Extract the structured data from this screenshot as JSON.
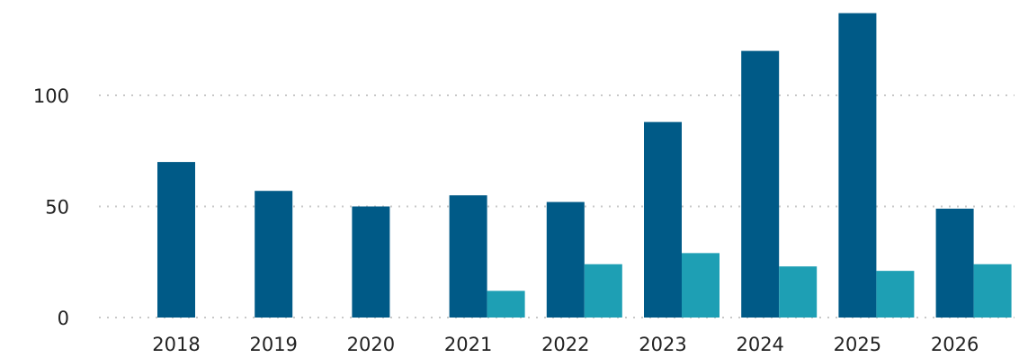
{
  "chart_data": {
    "type": "bar",
    "categories": [
      "2018",
      "2019",
      "2020",
      "2021",
      "2022",
      "2023",
      "2024",
      "2025",
      "2026"
    ],
    "series": [
      {
        "values": [
          70,
          57,
          50,
          55,
          52,
          88,
          120,
          137,
          49
        ],
        "color": "#005a87"
      },
      {
        "values": [
          null,
          null,
          null,
          12,
          24,
          29,
          23,
          21,
          24
        ],
        "color": "#1e9fb4"
      }
    ],
    "yticks": [
      0,
      50,
      100
    ],
    "ylim": [
      0,
      140
    ],
    "grid": true,
    "legend": "none",
    "title": "",
    "xlabel": "",
    "ylabel": ""
  }
}
